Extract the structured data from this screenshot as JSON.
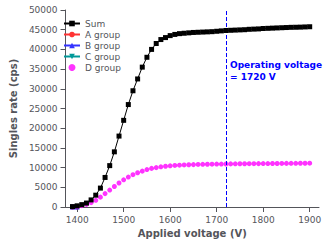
{
  "chart_data": {
    "type": "line",
    "xlabel": "Applied voltage (V)",
    "ylabel": "Singles rate (cps)",
    "xlim": [
      1375,
      1920
    ],
    "ylim": [
      0,
      50000
    ],
    "xticks": [
      1400,
      1500,
      1600,
      1700,
      1800,
      1900
    ],
    "yticks": [
      0,
      5000,
      10000,
      15000,
      20000,
      25000,
      30000,
      35000,
      40000,
      45000,
      50000
    ],
    "grid": false,
    "legend": "upper left",
    "vline": {
      "x": 1720,
      "color": "blue",
      "line_style": "dashed"
    },
    "annotation": {
      "text": "Operating voltage\n= 1720 V",
      "color": "blue"
    },
    "series": [
      {
        "name": "Sum",
        "type": "line",
        "color": "black",
        "marker": "square",
        "line_style": "solid",
        "x": [
          1390,
          1400,
          1410,
          1420,
          1430,
          1440,
          1450,
          1460,
          1470,
          1480,
          1490,
          1500,
          1510,
          1520,
          1530,
          1540,
          1550,
          1560,
          1570,
          1580,
          1590,
          1600,
          1610,
          1620,
          1630,
          1640,
          1650,
          1660,
          1670,
          1680,
          1690,
          1700,
          1710,
          1720,
          1730,
          1740,
          1750,
          1760,
          1770,
          1780,
          1790,
          1800,
          1810,
          1820,
          1830,
          1840,
          1850,
          1860,
          1870,
          1880,
          1890,
          1900
        ],
        "values": [
          100,
          300,
          600,
          1000,
          1800,
          3000,
          4800,
          7500,
          10500,
          14000,
          18000,
          22000,
          26000,
          29500,
          32500,
          35500,
          38000,
          40000,
          41500,
          42500,
          43000,
          43500,
          43800,
          44000,
          44100,
          44200,
          44300,
          44350,
          44400,
          44450,
          44500,
          44600,
          44700,
          44800,
          44850,
          44900,
          44950,
          45000,
          45100,
          45150,
          45200,
          45300,
          45350,
          45400,
          45450,
          45500,
          45550,
          45600,
          45620,
          45650,
          45700,
          45750
        ]
      },
      {
        "name": "A group",
        "type": "line",
        "color": "#ff3333",
        "marker": "circle",
        "line_style": "solid",
        "x": [
          1390,
          1400
        ],
        "values": [
          0,
          0
        ]
      },
      {
        "name": "B group",
        "type": "line",
        "color": "#3333ff",
        "marker": "triangle-up",
        "line_style": "solid",
        "x": [
          1390,
          1400
        ],
        "values": [
          0,
          0
        ]
      },
      {
        "name": "C group",
        "type": "line",
        "color": "#009999",
        "marker": "triangle-down",
        "line_style": "solid",
        "x": [
          1390,
          1400
        ],
        "values": [
          0,
          0
        ]
      },
      {
        "name": "D group",
        "type": "scatter",
        "color": "#ff00ff",
        "marker": "circle",
        "x": [
          1390,
          1400,
          1410,
          1420,
          1430,
          1440,
          1450,
          1460,
          1470,
          1480,
          1490,
          1500,
          1510,
          1520,
          1530,
          1540,
          1550,
          1560,
          1570,
          1580,
          1590,
          1600,
          1610,
          1620,
          1630,
          1640,
          1650,
          1660,
          1670,
          1680,
          1690,
          1700,
          1710,
          1720,
          1730,
          1740,
          1750,
          1760,
          1770,
          1780,
          1790,
          1800,
          1810,
          1820,
          1830,
          1840,
          1850,
          1860,
          1870,
          1880,
          1890,
          1900
        ],
        "values": [
          50,
          150,
          350,
          650,
          1100,
          1700,
          2500,
          3400,
          4300,
          5200,
          6100,
          6900,
          7600,
          8200,
          8700,
          9100,
          9500,
          9800,
          10000,
          10200,
          10350,
          10450,
          10550,
          10620,
          10680,
          10720,
          10760,
          10800,
          10830,
          10850,
          10870,
          10890,
          10900,
          10920,
          10940,
          10960,
          10970,
          10980,
          10990,
          11000,
          11010,
          11020,
          11030,
          11040,
          11050,
          11060,
          11070,
          11080,
          11090,
          11100,
          11110,
          11120
        ]
      }
    ]
  }
}
